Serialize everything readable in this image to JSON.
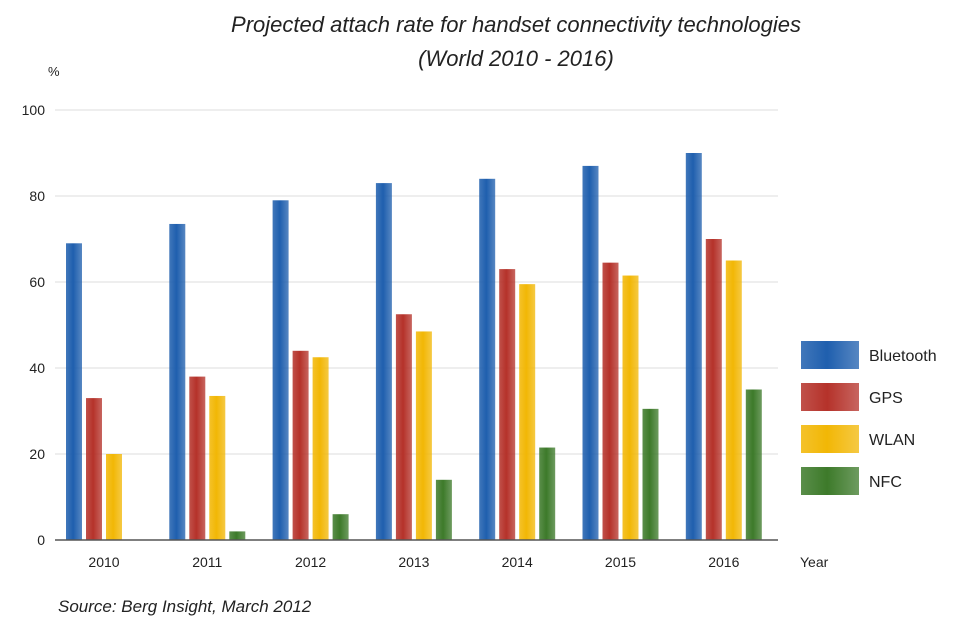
{
  "chart_data": {
    "type": "bar",
    "title": "Projected attach rate for handset connectivity technologies",
    "subtitle": "(World 2010 - 2016)",
    "ylabel": "%",
    "xlabel": "Year",
    "source": "Source: Berg Insight, March 2012",
    "ylim": [
      0,
      100
    ],
    "yticks": [
      0,
      20,
      40,
      60,
      80,
      100
    ],
    "grid": true,
    "legend_position": "right",
    "categories": [
      "2010",
      "2011",
      "2012",
      "2013",
      "2014",
      "2015",
      "2016"
    ],
    "series": [
      {
        "name": "Bluetooth",
        "color": "#1f5fae",
        "values": [
          69,
          73.5,
          79,
          83,
          84,
          87,
          90
        ]
      },
      {
        "name": "GPS",
        "color": "#b5322a",
        "values": [
          33,
          38,
          44,
          52.5,
          63,
          64.5,
          70
        ]
      },
      {
        "name": "WLAN",
        "color": "#f2b705",
        "values": [
          20,
          33.5,
          42.5,
          48.5,
          59.5,
          61.5,
          65
        ]
      },
      {
        "name": "NFC",
        "color": "#3d7a2a",
        "values": [
          0,
          2,
          6,
          14,
          21.5,
          30.5,
          35
        ]
      }
    ]
  }
}
